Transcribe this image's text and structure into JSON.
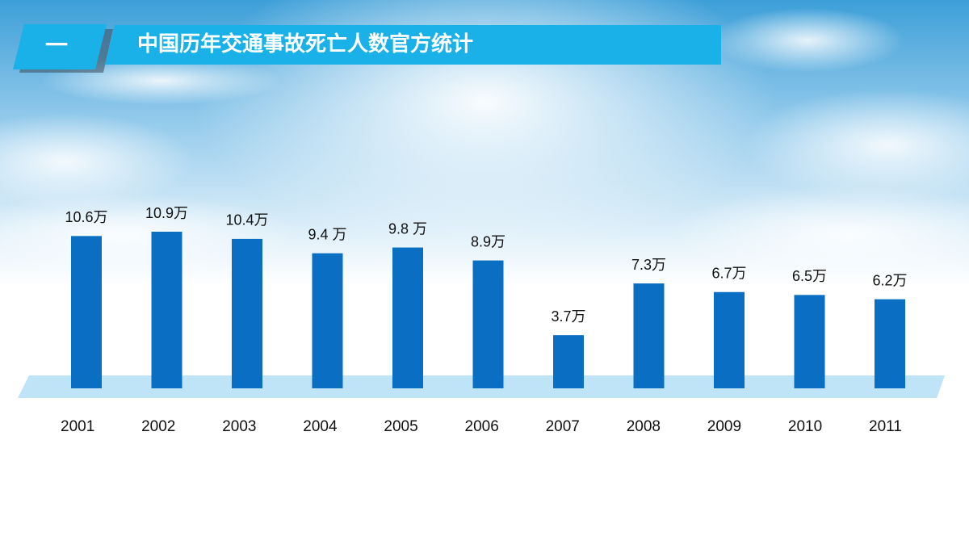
{
  "section_number": "一",
  "chart_data": {
    "type": "bar",
    "title": "中国历年交通事故死亡人数官方统计",
    "categories": [
      "2001",
      "2002",
      "2003",
      "2004",
      "2005",
      "2006",
      "2007",
      "2008",
      "2009",
      "2010",
      "2011"
    ],
    "values": [
      10.6,
      10.9,
      10.4,
      9.4,
      9.8,
      8.9,
      3.7,
      7.3,
      6.7,
      6.5,
      6.2
    ],
    "value_labels": [
      "10.6万",
      "10.9万",
      "10.4万",
      "9.4 万",
      "9.8 万",
      "8.9万",
      "3.7万",
      "7.3万",
      "6.7万",
      "6.5万",
      "6.2万"
    ],
    "color": "#0a6fc2"
  }
}
